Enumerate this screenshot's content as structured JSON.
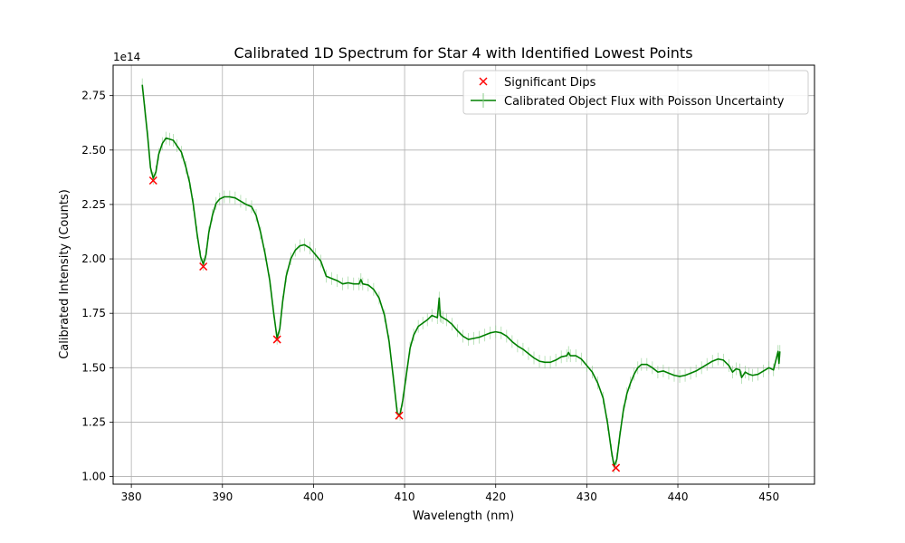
{
  "chart_data": {
    "type": "line",
    "title": "Calibrated 1D Spectrum for Star 4 with Identified Lowest Points",
    "xlabel": "Wavelength (nm)",
    "ylabel": "Calibrated Intensity (Counts)",
    "y_offset_label": "1e14",
    "xlim": [
      378,
      455
    ],
    "ylim": [
      0.965,
      2.89
    ],
    "x_ticks": [
      380,
      390,
      400,
      410,
      420,
      430,
      440,
      450
    ],
    "x_tick_labels": [
      "380",
      "390",
      "400",
      "410",
      "420",
      "430",
      "440",
      "450"
    ],
    "y_ticks": [
      1.0,
      1.25,
      1.5,
      1.75,
      2.0,
      2.25,
      2.5,
      2.75
    ],
    "y_tick_labels": [
      "1.00",
      "1.25",
      "1.50",
      "1.75",
      "2.00",
      "2.25",
      "2.50",
      "2.75"
    ],
    "grid": true,
    "legend_position": "top-right",
    "series": [
      {
        "name": "Calibrated Object Flux with Poisson Uncertainty",
        "kind": "line",
        "color": "#008000",
        "x": [
          381.2,
          381.5,
          381.8,
          382.1,
          382.4,
          382.7,
          383.0,
          383.4,
          383.8,
          384.2,
          384.6,
          385.0,
          385.5,
          386.0,
          386.4,
          386.8,
          387.2,
          387.6,
          387.9,
          388.2,
          388.5,
          388.9,
          389.3,
          389.7,
          390.2,
          390.8,
          391.4,
          392.0,
          392.6,
          393.2,
          393.7,
          394.2,
          394.7,
          395.2,
          395.6,
          396.0,
          396.3,
          396.6,
          397.0,
          397.5,
          398.0,
          398.5,
          399.0,
          399.6,
          400.2,
          400.8,
          401.4,
          402.0,
          402.6,
          403.2,
          403.8,
          404.4,
          405.0,
          405.2,
          405.4,
          406.0,
          406.6,
          407.2,
          407.8,
          408.3,
          408.8,
          409.2,
          409.5,
          409.8,
          410.2,
          410.6,
          411.0,
          411.5,
          412.0,
          412.5,
          413.0,
          413.6,
          413.8,
          413.9,
          414.0,
          414.2,
          414.6,
          415.2,
          415.8,
          416.4,
          417.0,
          417.6,
          418.2,
          418.8,
          419.4,
          420.0,
          420.6,
          421.2,
          421.8,
          422.4,
          423.0,
          423.6,
          424.2,
          424.8,
          425.4,
          426.0,
          426.6,
          427.2,
          427.8,
          428.0,
          428.2,
          428.8,
          429.4,
          430.0,
          430.6,
          431.2,
          431.8,
          432.3,
          432.7,
          433.0,
          433.3,
          433.6,
          434.0,
          434.4,
          434.8,
          435.2,
          435.6,
          436.0,
          436.6,
          437.2,
          437.8,
          438.4,
          439.0,
          439.6,
          440.2,
          440.8,
          441.4,
          442.0,
          442.6,
          443.2,
          443.8,
          444.4,
          445.0,
          445.6,
          446.0,
          446.4,
          446.8,
          447.0,
          447.4,
          447.8,
          448.2,
          448.8,
          449.4,
          450.0,
          450.5,
          451.0,
          451.1,
          451.2
        ],
        "values": [
          2.8,
          2.68,
          2.56,
          2.42,
          2.37,
          2.4,
          2.48,
          2.53,
          2.555,
          2.55,
          2.545,
          2.52,
          2.49,
          2.42,
          2.35,
          2.25,
          2.12,
          2.01,
          1.975,
          2.02,
          2.12,
          2.2,
          2.255,
          2.275,
          2.285,
          2.285,
          2.28,
          2.265,
          2.25,
          2.24,
          2.2,
          2.12,
          2.02,
          1.9,
          1.76,
          1.635,
          1.68,
          1.8,
          1.92,
          2.0,
          2.04,
          2.06,
          2.065,
          2.05,
          2.02,
          1.99,
          1.92,
          1.91,
          1.9,
          1.885,
          1.89,
          1.885,
          1.885,
          1.905,
          1.885,
          1.88,
          1.86,
          1.82,
          1.74,
          1.62,
          1.44,
          1.29,
          1.285,
          1.35,
          1.47,
          1.59,
          1.65,
          1.69,
          1.705,
          1.72,
          1.74,
          1.73,
          1.82,
          1.74,
          1.735,
          1.73,
          1.72,
          1.7,
          1.67,
          1.645,
          1.63,
          1.635,
          1.64,
          1.65,
          1.66,
          1.665,
          1.66,
          1.645,
          1.62,
          1.6,
          1.585,
          1.565,
          1.545,
          1.53,
          1.525,
          1.525,
          1.535,
          1.55,
          1.555,
          1.57,
          1.555,
          1.555,
          1.54,
          1.51,
          1.48,
          1.43,
          1.36,
          1.24,
          1.12,
          1.045,
          1.08,
          1.18,
          1.3,
          1.38,
          1.43,
          1.47,
          1.5,
          1.515,
          1.515,
          1.5,
          1.48,
          1.485,
          1.475,
          1.465,
          1.46,
          1.465,
          1.475,
          1.485,
          1.5,
          1.515,
          1.53,
          1.54,
          1.535,
          1.51,
          1.48,
          1.495,
          1.49,
          1.455,
          1.48,
          1.47,
          1.465,
          1.47,
          1.485,
          1.5,
          1.49,
          1.575,
          1.52,
          1.575
        ]
      },
      {
        "name": "Significant Dips",
        "kind": "scatter",
        "marker": "x",
        "color": "#ff0000",
        "x": [
          382.4,
          387.9,
          396.0,
          409.4,
          433.2
        ],
        "values": [
          2.36,
          1.965,
          1.63,
          1.28,
          1.04
        ]
      }
    ]
  }
}
